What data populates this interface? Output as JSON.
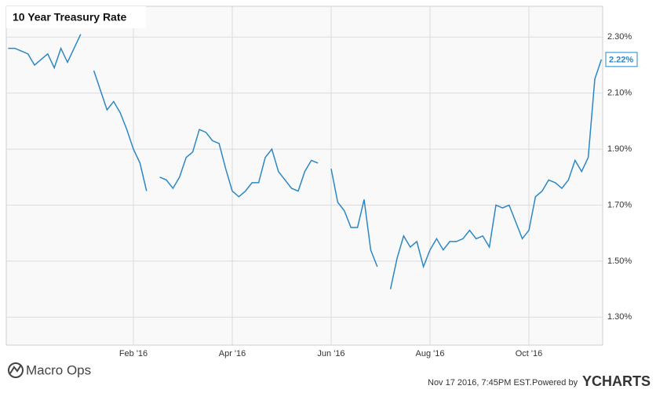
{
  "chart_data": {
    "type": "line",
    "title": "10 Year Treasury Rate",
    "categories": [
      null,
      null,
      null,
      null,
      null,
      null,
      null,
      null,
      null,
      null,
      null,
      null,
      null,
      null,
      null,
      null,
      null,
      null,
      null,
      "Feb '16",
      null,
      null,
      null,
      null,
      null,
      null,
      null,
      null,
      null,
      null,
      null,
      null,
      null,
      null,
      "Apr '16",
      null,
      null,
      null,
      null,
      null,
      null,
      null,
      null,
      null,
      null,
      null,
      null,
      null,
      null,
      "Jun '16",
      null,
      null,
      null,
      null,
      null,
      null,
      null,
      null,
      null,
      null,
      null,
      null,
      null,
      null,
      "Aug '16",
      null,
      null,
      null,
      null,
      null,
      null,
      null,
      null,
      null,
      null,
      null,
      null,
      null,
      null,
      "Oct '16",
      null,
      null,
      null,
      null,
      null,
      null,
      null,
      null,
      null,
      null,
      null
    ],
    "series": [
      {
        "name": "10 Year Treasury Rate",
        "color": "#2b87c5",
        "values": [
          2.26,
          2.26,
          2.25,
          2.24,
          2.2,
          2.22,
          2.24,
          2.19,
          2.26,
          2.21,
          2.26,
          2.31,
          null,
          2.18,
          2.11,
          2.04,
          2.07,
          2.03,
          1.97,
          1.9,
          1.85,
          1.75,
          null,
          1.8,
          1.79,
          1.76,
          1.8,
          1.87,
          1.89,
          1.97,
          1.96,
          1.93,
          1.92,
          1.83,
          1.75,
          1.73,
          1.75,
          1.78,
          1.78,
          1.87,
          1.9,
          1.82,
          1.79,
          1.76,
          1.75,
          1.82,
          1.86,
          1.85,
          null,
          1.83,
          1.71,
          1.68,
          1.62,
          1.62,
          1.72,
          1.54,
          1.48,
          null,
          1.4,
          1.51,
          1.59,
          1.55,
          1.57,
          1.48,
          1.54,
          1.58,
          1.54,
          1.57,
          1.57,
          1.58,
          1.61,
          1.58,
          1.59,
          1.55,
          1.7,
          1.69,
          1.7,
          1.64,
          1.58,
          1.61,
          1.73,
          1.75,
          1.79,
          1.78,
          1.76,
          1.79,
          1.86,
          1.82,
          1.87,
          2.15,
          2.22
        ],
        "last_label": "2.22%"
      }
    ],
    "ylim": [
      1.2,
      2.41
    ],
    "yticks": [
      {
        "value": 1.3,
        "label": "1.30%"
      },
      {
        "value": 1.5,
        "label": "1.50%"
      },
      {
        "value": 1.7,
        "label": "1.70%"
      },
      {
        "value": 1.9,
        "label": "1.90%"
      },
      {
        "value": 2.1,
        "label": "2.10%"
      },
      {
        "value": 2.3,
        "label": "2.30%"
      }
    ],
    "grid": true,
    "watermark": "Macro Ops",
    "timestamp": "Nov 17 2016, 7:45PM EST.",
    "powered_by": "Powered by",
    "brand": "YCHARTS"
  }
}
